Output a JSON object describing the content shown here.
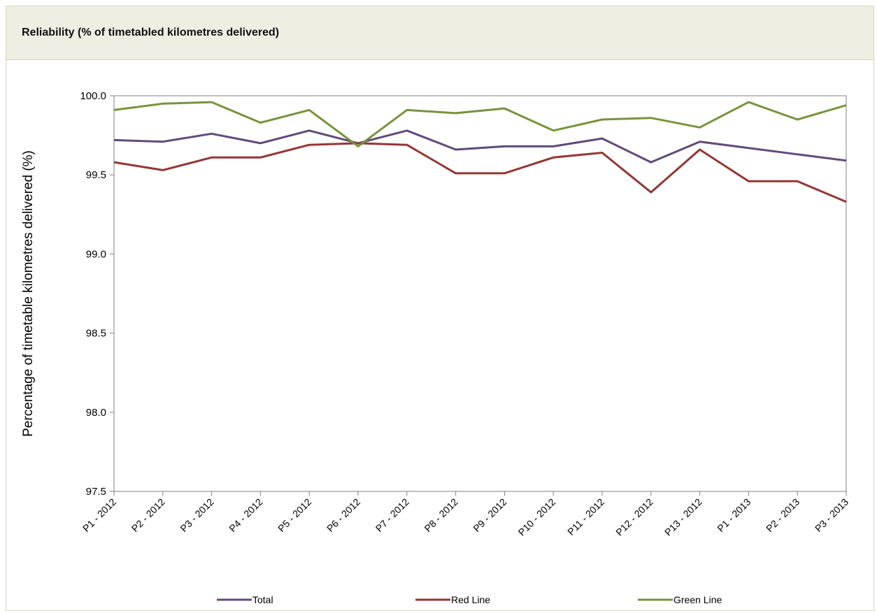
{
  "panel": {
    "title": "Reliability (% of timetabled kilometres delivered)"
  },
  "chart_data": {
    "type": "line",
    "title": "",
    "xlabel": "",
    "ylabel": "Percentage of timetable kilometres delivered (%)",
    "ylim": [
      97.5,
      100.0
    ],
    "yticks": [
      97.5,
      98.0,
      98.5,
      99.0,
      99.5,
      100.0
    ],
    "grid": false,
    "legend_position": "bottom",
    "categories": [
      "P1 - 2012",
      "P2 - 2012",
      "P3 - 2012",
      "P4 - 2012",
      "P5 - 2012",
      "P6 - 2012",
      "P7 - 2012",
      "P8 - 2012",
      "P9 - 2012",
      "P10 - 2012",
      "P11 - 2012",
      "P12 - 2012",
      "P13 - 2012",
      "P1 - 2013",
      "P2 - 2013",
      "P3 - 2013"
    ],
    "series": [
      {
        "name": "Total",
        "color": "#604a7b",
        "values": [
          99.72,
          99.71,
          99.76,
          99.7,
          99.78,
          99.7,
          99.78,
          99.66,
          99.68,
          99.68,
          99.73,
          99.58,
          99.71,
          99.67,
          99.63,
          99.59
        ]
      },
      {
        "name": "Red Line",
        "color": "#943634",
        "values": [
          99.58,
          99.53,
          99.61,
          99.61,
          99.69,
          99.7,
          99.69,
          99.51,
          99.51,
          99.61,
          99.64,
          99.39,
          99.66,
          99.46,
          99.46,
          99.33
        ]
      },
      {
        "name": "Green Line",
        "color": "#77933c",
        "values": [
          99.91,
          99.95,
          99.96,
          99.83,
          99.91,
          99.68,
          99.91,
          99.89,
          99.92,
          99.78,
          99.85,
          99.86,
          99.8,
          99.96,
          99.85,
          99.94
        ]
      }
    ]
  }
}
